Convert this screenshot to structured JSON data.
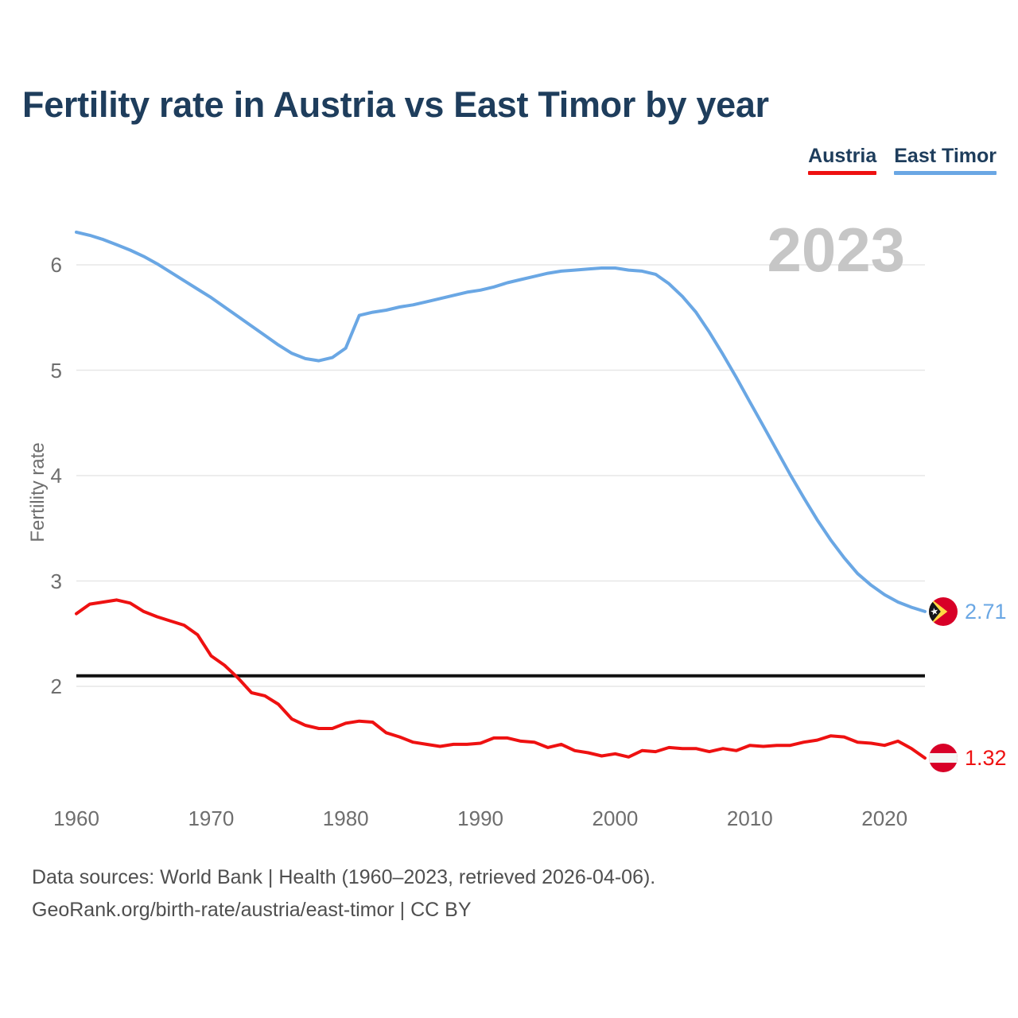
{
  "title": "Fertility rate in Austria vs East Timor by year",
  "watermark": "2023",
  "ylabel": "Fertility rate",
  "legend": [
    {
      "label": "Austria",
      "color": "#ee1111"
    },
    {
      "label": "East Timor",
      "color": "#6aa7e4"
    }
  ],
  "footer": {
    "line1": "Data sources: World Bank | Health (1960–2023, retrieved 2026-04-06).",
    "line2": "GeoRank.org/birth-rate/austria/east-timor | CC BY"
  },
  "colors": {
    "title": "#1e3d5c",
    "austria_line": "#ee1111",
    "east_timor_line": "#6aa7e4",
    "replacement_line": "#111111",
    "gridline": "#e7e7e7",
    "tick_text": "#6e6e6e",
    "watermark": "#c6c6c6",
    "footer_text": "#4f4f4f"
  },
  "chart_data": {
    "type": "line",
    "title": "Fertility rate in Austria vs East Timor by year",
    "xlabel": "",
    "ylabel": "Fertility rate",
    "x_start": 1960,
    "x_end": 2023,
    "xticks": [
      1960,
      1970,
      1980,
      1990,
      2000,
      2010,
      2020
    ],
    "yticks": [
      2,
      3,
      4,
      5,
      6
    ],
    "ylim": [
      1.1,
      6.5
    ],
    "grid": "horizontal",
    "legend_position": "top-right",
    "replacement_line": {
      "value": 2.1,
      "color": "#111111"
    },
    "series": [
      {
        "name": "Austria",
        "color": "#ee1111",
        "end_label": "1.32",
        "flag": "austria",
        "values": [
          2.69,
          2.78,
          2.8,
          2.82,
          2.79,
          2.71,
          2.66,
          2.62,
          2.58,
          2.49,
          2.29,
          2.2,
          2.08,
          1.94,
          1.91,
          1.83,
          1.69,
          1.63,
          1.6,
          1.6,
          1.65,
          1.67,
          1.66,
          1.56,
          1.52,
          1.47,
          1.45,
          1.43,
          1.45,
          1.45,
          1.46,
          1.51,
          1.51,
          1.48,
          1.47,
          1.42,
          1.45,
          1.39,
          1.37,
          1.34,
          1.36,
          1.33,
          1.39,
          1.38,
          1.42,
          1.41,
          1.41,
          1.38,
          1.41,
          1.39,
          1.44,
          1.43,
          1.44,
          1.44,
          1.47,
          1.49,
          1.53,
          1.52,
          1.47,
          1.46,
          1.44,
          1.48,
          1.41,
          1.32
        ]
      },
      {
        "name": "East Timor",
        "color": "#6aa7e4",
        "end_label": "2.71",
        "flag": "east-timor",
        "values": [
          6.31,
          6.28,
          6.24,
          6.19,
          6.14,
          6.08,
          6.01,
          5.93,
          5.85,
          5.77,
          5.69,
          5.6,
          5.51,
          5.42,
          5.33,
          5.24,
          5.16,
          5.11,
          5.09,
          5.12,
          5.21,
          5.52,
          5.55,
          5.57,
          5.6,
          5.62,
          5.65,
          5.68,
          5.71,
          5.74,
          5.76,
          5.79,
          5.83,
          5.86,
          5.89,
          5.92,
          5.94,
          5.95,
          5.96,
          5.97,
          5.97,
          5.95,
          5.94,
          5.91,
          5.82,
          5.7,
          5.55,
          5.36,
          5.15,
          4.93,
          4.7,
          4.47,
          4.24,
          4.01,
          3.79,
          3.58,
          3.39,
          3.22,
          3.07,
          2.96,
          2.87,
          2.8,
          2.75,
          2.71
        ]
      }
    ]
  }
}
